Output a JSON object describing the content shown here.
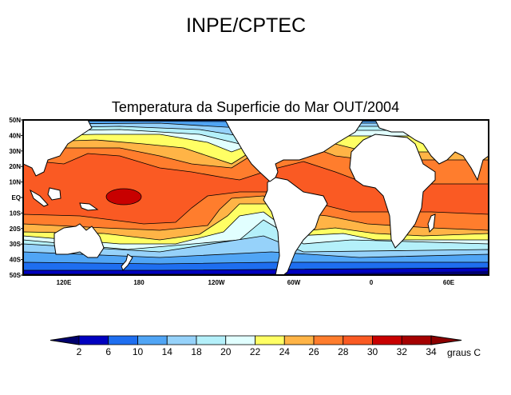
{
  "header": {
    "title": "INPE/CPTEC"
  },
  "map": {
    "title": "Temperatura da Superficie do Mar OUT/2004",
    "lat_labels": [
      "50N",
      "40N",
      "30N",
      "20N",
      "10N",
      "EQ",
      "10S",
      "20S",
      "30S",
      "40S",
      "50S"
    ],
    "lon_labels": [
      "120E",
      "180",
      "120W",
      "60W",
      "0",
      "60E"
    ]
  },
  "colorbar": {
    "labels": [
      "2",
      "6",
      "10",
      "14",
      "18",
      "20",
      "22",
      "24",
      "26",
      "28",
      "30",
      "32",
      "34"
    ],
    "unit": "graus C",
    "below_color": "#00006e",
    "colors": [
      "#0000c0",
      "#1e6ef0",
      "#50a5f5",
      "#96d2fa",
      "#b4f0fa",
      "#e1ffff",
      "#ffff64",
      "#ffb446",
      "#ff7d2d",
      "#fa5a23",
      "#c80000",
      "#a50000"
    ],
    "above_color": "#8c0000"
  }
}
